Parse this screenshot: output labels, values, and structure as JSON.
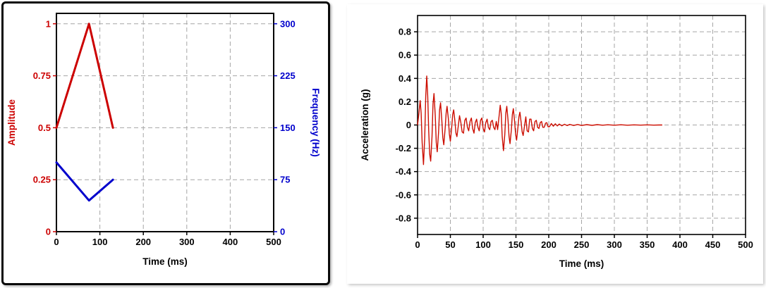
{
  "page": {
    "background": "#ffffff"
  },
  "chart_data": [
    {
      "id": "excitation-profile",
      "type": "line",
      "title": "",
      "xlabel": "Time (ms)",
      "ylabel_left": "Amplitude",
      "ylabel_right": "Frequency (Hz)",
      "xlim": [
        0,
        500
      ],
      "ylim_left": [
        0,
        1.05
      ],
      "ylim_right": [
        0,
        315
      ],
      "grid": {
        "on": true,
        "color": "#a6a6a6",
        "dash": "6,4"
      },
      "frame_color": "#000000",
      "axis_left_color": "#cc0000",
      "axis_right_color": "#0000cc",
      "x_ticks": {
        "values": [
          0,
          100,
          200,
          300,
          400,
          500
        ],
        "labels": [
          "0",
          "100",
          "200",
          "300",
          "400",
          "500"
        ]
      },
      "y_ticks_left": {
        "values": [
          0,
          0.25,
          0.5,
          0.75,
          1
        ],
        "labels": [
          "0",
          "0.25",
          "0.5",
          "0.75",
          "1"
        ]
      },
      "y_ticks_right": {
        "values": [
          0,
          75,
          150,
          225,
          300
        ],
        "labels": [
          "0",
          "75",
          "150",
          "225",
          "300"
        ]
      },
      "series": [
        {
          "name": "amplitude",
          "axis": "left",
          "color": "#cc0000",
          "points": [
            [
              0,
              0.5
            ],
            [
              75,
              1.0
            ],
            [
              130,
              0.5
            ]
          ]
        },
        {
          "name": "frequency",
          "axis": "right",
          "color": "#0000cc",
          "points": [
            [
              0,
              100
            ],
            [
              75,
              45
            ],
            [
              130,
              75
            ]
          ]
        }
      ]
    },
    {
      "id": "acceleration-response",
      "type": "line",
      "title": "",
      "xlabel": "Time (ms)",
      "ylabel": "Acceleration (g)",
      "xlim": [
        0,
        500
      ],
      "ylim": [
        -0.94,
        0.94
      ],
      "grid": {
        "on": true,
        "color": "#a6a6a6",
        "dash": "6,4"
      },
      "frame_color": "#000000",
      "x_ticks": {
        "values": [
          0,
          50,
          100,
          150,
          200,
          250,
          300,
          350,
          400,
          450,
          500
        ],
        "labels": [
          "0",
          "50",
          "100",
          "150",
          "200",
          "250",
          "300",
          "350",
          "400",
          "450",
          "500"
        ]
      },
      "y_ticks": {
        "values": [
          -0.8,
          -0.6,
          -0.4,
          -0.2,
          0,
          0.2,
          0.4,
          0.6,
          0.8
        ],
        "labels": [
          "-0.8",
          "-0.6",
          "-0.4",
          "-0.2",
          "0",
          "0.2",
          "0.4",
          "0.6",
          "0.8"
        ]
      },
      "series": [
        {
          "name": "acceleration",
          "color": "#cc0d00",
          "points": [
            [
              0,
              0
            ],
            [
              2,
              0.1
            ],
            [
              4,
              0.21
            ],
            [
              5.5,
              0.1
            ],
            [
              7,
              -0.15
            ],
            [
              9,
              -0.34
            ],
            [
              11,
              -0.1
            ],
            [
              12.5,
              0.25
            ],
            [
              14,
              0.42
            ],
            [
              15.5,
              0.25
            ],
            [
              17,
              -0.05
            ],
            [
              18.5,
              -0.25
            ],
            [
              20,
              -0.31
            ],
            [
              22,
              -0.1
            ],
            [
              23.5,
              0.18
            ],
            [
              25,
              0.27
            ],
            [
              27,
              0.08
            ],
            [
              28.5,
              -0.15
            ],
            [
              30,
              -0.23
            ],
            [
              32,
              -0.06
            ],
            [
              33.5,
              0.13
            ],
            [
              35,
              0.19
            ],
            [
              37,
              0.04
            ],
            [
              38.5,
              -0.11
            ],
            [
              40,
              -0.17
            ],
            [
              42,
              -0.03
            ],
            [
              43.5,
              0.1
            ],
            [
              45,
              0.16
            ],
            [
              47,
              0.05
            ],
            [
              48.5,
              -0.08
            ],
            [
              50,
              -0.14
            ],
            [
              52,
              -0.02
            ],
            [
              53.5,
              0.09
            ],
            [
              55,
              0.13
            ],
            [
              57,
              0.03
            ],
            [
              58.5,
              -0.07
            ],
            [
              60,
              -0.1
            ],
            [
              62,
              -0.01
            ],
            [
              64,
              0.08
            ],
            [
              66,
              0.02
            ],
            [
              68,
              -0.06
            ],
            [
              70,
              -0.07
            ],
            [
              72,
              0.04
            ],
            [
              74,
              0.06
            ],
            [
              76,
              -0.02
            ],
            [
              78,
              -0.05
            ],
            [
              80,
              0.03
            ],
            [
              82,
              0.06
            ],
            [
              84,
              -0.03
            ],
            [
              86,
              -0.07
            ],
            [
              88,
              0.02
            ],
            [
              90,
              0.05
            ],
            [
              92,
              -0.02
            ],
            [
              94,
              -0.05
            ],
            [
              96,
              0.04
            ],
            [
              98,
              0.06
            ],
            [
              100,
              -0.03
            ],
            [
              102,
              -0.06
            ],
            [
              104,
              0.02
            ],
            [
              106,
              0.05
            ],
            [
              108,
              -0.02
            ],
            [
              110,
              -0.04
            ],
            [
              112,
              0.03
            ],
            [
              114,
              0.04
            ],
            [
              116,
              -0.02
            ],
            [
              118,
              -0.04
            ],
            [
              120,
              0.03
            ],
            [
              122,
              -0.04
            ],
            [
              124,
              0.06
            ],
            [
              126,
              0.17
            ],
            [
              127.5,
              0.1
            ],
            [
              129,
              -0.1
            ],
            [
              131,
              -0.22
            ],
            [
              133,
              -0.08
            ],
            [
              134.5,
              0.1
            ],
            [
              136,
              0.16
            ],
            [
              138,
              0.04
            ],
            [
              139.5,
              -0.1
            ],
            [
              141,
              -0.16
            ],
            [
              143,
              -0.04
            ],
            [
              144.5,
              0.09
            ],
            [
              146,
              0.14
            ],
            [
              148,
              0.03
            ],
            [
              149.5,
              -0.08
            ],
            [
              151,
              -0.13
            ],
            [
              153,
              -0.02
            ],
            [
              154.5,
              0.07
            ],
            [
              156,
              0.11
            ],
            [
              158,
              0.02
            ],
            [
              159.5,
              -0.06
            ],
            [
              161,
              -0.09
            ],
            [
              163,
              -0.01
            ],
            [
              165,
              0.07
            ],
            [
              167,
              -0.05
            ],
            [
              169,
              -0.06
            ],
            [
              171,
              0.05
            ],
            [
              173,
              0.05
            ],
            [
              175,
              -0.03
            ],
            [
              177,
              -0.05
            ],
            [
              179,
              0.03
            ],
            [
              181,
              0.04
            ],
            [
              183,
              -0.02
            ],
            [
              185,
              -0.03
            ],
            [
              187,
              0.02
            ],
            [
              189,
              0.03
            ],
            [
              191,
              -0.02
            ],
            [
              193,
              -0.02
            ],
            [
              195,
              0.015
            ],
            [
              197,
              0.02
            ],
            [
              199,
              -0.015
            ],
            [
              201,
              -0.015
            ],
            [
              204,
              0.012
            ],
            [
              207,
              -0.01
            ],
            [
              210,
              0.01
            ],
            [
              213,
              -0.008
            ],
            [
              216,
              0.008
            ],
            [
              220,
              -0.007
            ],
            [
              224,
              0.006
            ],
            [
              228,
              -0.005
            ],
            [
              232,
              0.005
            ],
            [
              238,
              -0.004
            ],
            [
              244,
              0.004
            ],
            [
              250,
              -0.004
            ],
            [
              258,
              0.003
            ],
            [
              266,
              -0.003
            ],
            [
              274,
              0.003
            ],
            [
              282,
              -0.002
            ],
            [
              290,
              0.002
            ],
            [
              300,
              -0.002
            ],
            [
              310,
              0.002
            ],
            [
              320,
              -0.002
            ],
            [
              330,
              0.001
            ],
            [
              340,
              -0.001
            ],
            [
              350,
              0.001
            ],
            [
              360,
              -0.001
            ],
            [
              368,
              0
            ],
            [
              373,
              0
            ]
          ]
        }
      ]
    }
  ]
}
